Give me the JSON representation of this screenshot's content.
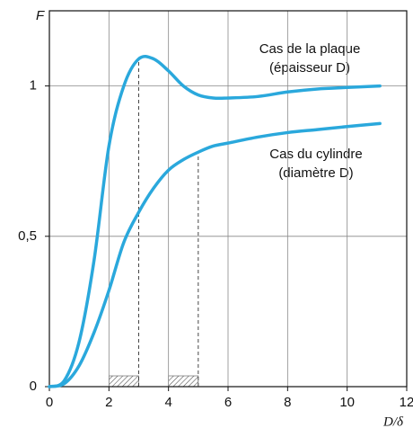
{
  "chart_data": {
    "type": "line",
    "y_label": "F",
    "x_label": "D/δ",
    "annotations": [
      "Cas de la plaque",
      "(épaisseur D)",
      "Cas du cylindre",
      "(diamètre D)"
    ],
    "x": [
      0,
      0.5,
      1,
      1.5,
      2,
      2.5,
      3,
      3.5,
      4,
      4.5,
      5,
      5.5,
      6,
      7,
      8,
      9,
      10,
      11.1
    ],
    "series": [
      {
        "color": "#2aa8dc",
        "values": [
          0,
          0.02,
          0.15,
          0.42,
          0.8,
          1.0,
          1.09,
          1.09,
          1.05,
          1.0,
          0.97,
          0.96,
          0.96,
          0.965,
          0.98,
          0.99,
          0.995,
          1.0
        ]
      },
      {
        "color": "#2aa8dc",
        "values": [
          0,
          0.01,
          0.07,
          0.18,
          0.32,
          0.48,
          0.58,
          0.66,
          0.72,
          0.755,
          0.78,
          0.8,
          0.81,
          0.83,
          0.845,
          0.855,
          0.865,
          0.875
        ]
      }
    ],
    "dashed_x": [
      3,
      5
    ],
    "dashed_series": [
      0,
      1
    ],
    "hatched_ranges": [
      [
        2,
        3
      ],
      [
        4,
        5
      ]
    ],
    "xlim": [
      0,
      12
    ],
    "xticks": [
      0,
      2,
      4,
      6,
      8,
      10,
      12
    ],
    "ylim": [
      0,
      1.25
    ],
    "yticks": [
      0,
      {
        "value": 0.5,
        "label": "0,5"
      },
      1
    ],
    "grid": true
  }
}
